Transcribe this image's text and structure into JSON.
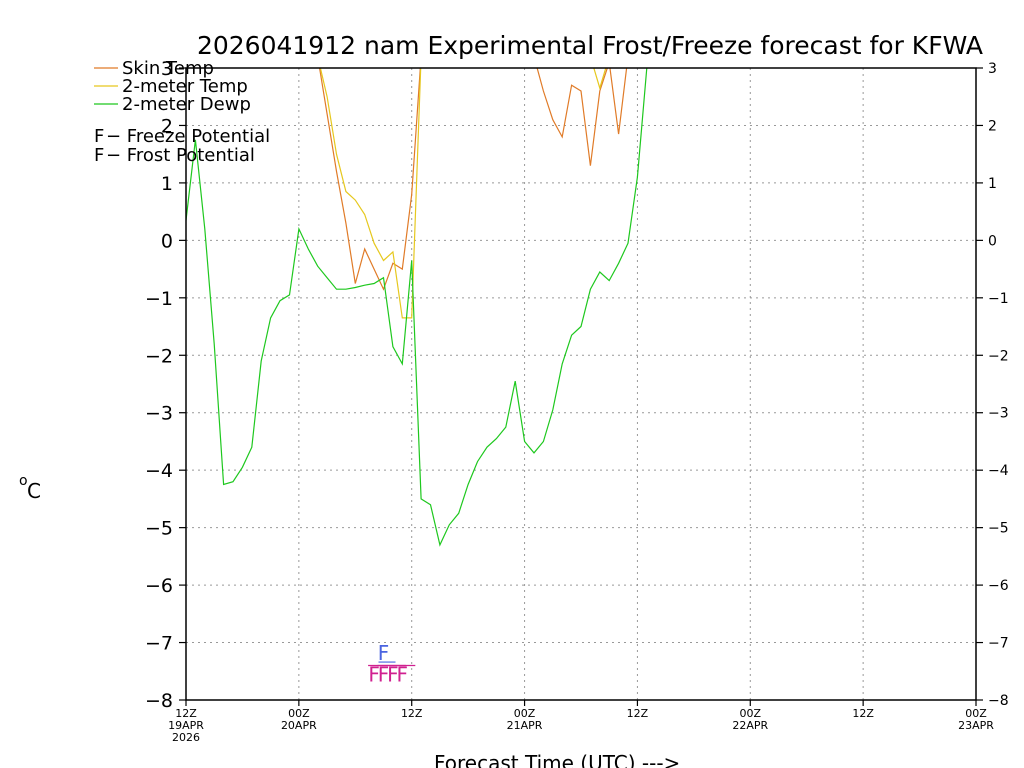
{
  "chart_data": {
    "type": "line",
    "title": "2026041912 nam Experimental Frost/Freeze forecast for KFWA",
    "ylabel": "°C",
    "ylabel_degree": "o",
    "ylabel_unit": "C",
    "xlabel": "Forecast Time (UTC)  --->",
    "ylim": [
      -8,
      3
    ],
    "xlim": [
      0,
      84
    ],
    "yticks": [
      -8,
      -7,
      -6,
      -5,
      -4,
      -3,
      -2,
      -1,
      0,
      1,
      2,
      3
    ],
    "ytick_labels": [
      "−8",
      "−7",
      "−6",
      "−5",
      "−4",
      "−3",
      "−2",
      "−1",
      "0",
      "1",
      "2",
      "3"
    ],
    "xticks": [
      {
        "hour": 0,
        "lines": [
          "12Z",
          "19APR",
          "2026"
        ]
      },
      {
        "hour": 12,
        "lines": [
          "00Z",
          "20APR"
        ]
      },
      {
        "hour": 24,
        "lines": [
          "12Z"
        ]
      },
      {
        "hour": 36,
        "lines": [
          "00Z",
          "21APR"
        ]
      },
      {
        "hour": 48,
        "lines": [
          "12Z"
        ]
      },
      {
        "hour": 60,
        "lines": [
          "00Z",
          "22APR"
        ]
      },
      {
        "hour": 72,
        "lines": [
          "12Z"
        ]
      },
      {
        "hour": 84,
        "lines": [
          "00Z",
          "23APR"
        ]
      }
    ],
    "grid": true,
    "legend": [
      {
        "name": "Skin Temp",
        "color": "#e07b28"
      },
      {
        "name": "2-meter Temp",
        "color": "#e6c81e"
      },
      {
        "name": "2-meter Dewp",
        "color": "#1ec81e"
      }
    ],
    "flag_legend": [
      {
        "glyph": "F",
        "text": " − Freeze Potential",
        "color": "#d02090"
      },
      {
        "glyph": "F",
        "text": " − Frost Potential",
        "color": "#4a64e0"
      }
    ],
    "series": [
      {
        "name": "Skin Temp",
        "color": "#e07b28",
        "x": [
          14,
          15,
          16,
          17,
          18,
          19,
          20,
          21,
          22,
          23,
          24,
          25,
          37,
          38,
          39,
          40,
          41,
          42,
          43,
          44,
          45,
          46,
          47
        ],
        "y": [
          3.2,
          2.2,
          1.2,
          0.3,
          -0.75,
          -0.15,
          -0.5,
          -0.85,
          -0.4,
          -0.5,
          0.8,
          3.2,
          3.2,
          2.6,
          2.1,
          1.8,
          2.7,
          2.6,
          1.3,
          2.6,
          3.1,
          1.85,
          3.2
        ]
      },
      {
        "name": "2-meter Temp",
        "color": "#e6c81e",
        "x": [
          14,
          15,
          16,
          17,
          18,
          19,
          20,
          21,
          22,
          23,
          24,
          25,
          43,
          44,
          45
        ],
        "y": [
          3.2,
          2.5,
          1.5,
          0.85,
          0.7,
          0.45,
          -0.05,
          -0.35,
          -0.2,
          -1.35,
          -1.35,
          3.2,
          3.2,
          2.65,
          3.2
        ]
      },
      {
        "name": "2-meter Dewp",
        "color": "#1ec81e",
        "x": [
          0,
          1,
          2,
          3,
          4,
          5,
          6,
          7,
          8,
          9,
          10,
          11,
          12,
          13,
          14,
          15,
          16,
          17,
          18,
          19,
          20,
          21,
          22,
          23,
          24,
          25,
          26,
          27,
          28,
          29,
          30,
          31,
          32,
          33,
          34,
          35,
          36,
          37,
          38,
          39,
          40,
          41,
          42,
          43,
          44,
          45,
          46,
          47,
          48,
          49,
          50
        ],
        "y": [
          0.35,
          1.75,
          0.2,
          -1.8,
          -4.25,
          -4.2,
          -3.95,
          -3.6,
          -2.1,
          -1.35,
          -1.05,
          -0.95,
          0.2,
          -0.15,
          -0.45,
          -0.65,
          -0.85,
          -0.85,
          -0.82,
          -0.78,
          -0.75,
          -0.65,
          -1.85,
          -2.15,
          -0.35,
          -4.5,
          -4.6,
          -5.3,
          -4.95,
          -4.75,
          -4.25,
          -3.85,
          -3.6,
          -3.45,
          -3.25,
          -2.45,
          -3.5,
          -3.7,
          -3.5,
          -2.95,
          -2.15,
          -1.65,
          -1.5,
          -0.85,
          -0.55,
          -0.7,
          -0.4,
          -0.05,
          1.1,
          3.0,
          3.2
        ]
      }
    ],
    "frost_marks": {
      "glyph": "F",
      "color": "#4a64e0",
      "hours": [
        21
      ]
    },
    "freeze_marks": {
      "glyph": "F",
      "color": "#d02090",
      "hours": [
        20,
        21,
        22,
        23
      ]
    }
  }
}
